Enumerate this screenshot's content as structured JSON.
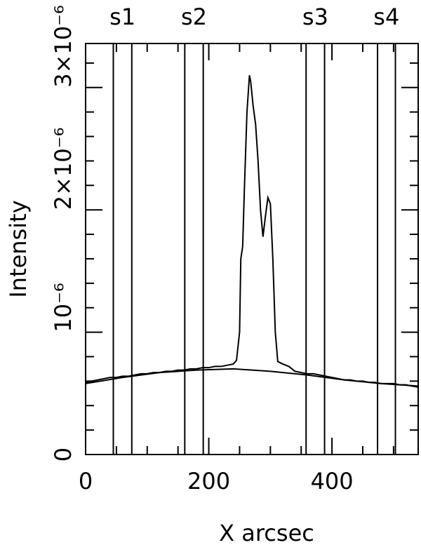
{
  "chart_data": {
    "type": "line",
    "xlabel": "X arcsec",
    "ylabel": "Intensity",
    "xlim": [
      0,
      540
    ],
    "ylim": [
      0,
      3.36e-06
    ],
    "xticks": [
      0,
      200,
      400
    ],
    "xticks_minor": [
      50,
      100,
      150,
      250,
      300,
      350,
      450,
      500
    ],
    "yticks": [
      0,
      {
        "value": 1e-06,
        "label": "10⁻⁶"
      },
      {
        "value": 2e-06,
        "label": "2×10⁻⁶"
      },
      {
        "value": 3e-06,
        "label": "3×10⁻⁶"
      }
    ],
    "yticks_minor": [
      2e-07,
      4e-07,
      6e-07,
      8e-07,
      1.2e-06,
      1.4e-06,
      1.6e-06,
      1.8e-06,
      2.2e-06,
      2.4e-06,
      2.6e-06,
      2.8e-06,
      3.2e-06
    ],
    "regions": [
      {
        "label": "s1",
        "x": [
          45,
          75
        ]
      },
      {
        "label": "s2",
        "x": [
          161,
          191
        ]
      },
      {
        "label": "s3",
        "x": [
          358,
          388
        ]
      },
      {
        "label": "s4",
        "x": [
          474,
          503
        ]
      }
    ],
    "series": [
      {
        "color": "#000000",
        "x": [
          0,
          10,
          20,
          30,
          40,
          50,
          60,
          70,
          80,
          90,
          100,
          110,
          120,
          130,
          140,
          150,
          160,
          170,
          180,
          190,
          200,
          210,
          220,
          230,
          240,
          245,
          250,
          252,
          255,
          258,
          262,
          266,
          268,
          272,
          276,
          280,
          284,
          288,
          292,
          296,
          300,
          304,
          308,
          312,
          320,
          330,
          340,
          350,
          360,
          370,
          380,
          390,
          400,
          410,
          420,
          430,
          440,
          450,
          460,
          470,
          480,
          490,
          500,
          510,
          520,
          530,
          540
        ],
        "values": [
          5.9e-07,
          6e-07,
          6.1e-07,
          6.2e-07,
          6.3e-07,
          6.3e-07,
          6.4e-07,
          6.4e-07,
          6.5e-07,
          6.6e-07,
          6.6e-07,
          6.7e-07,
          6.7e-07,
          6.8e-07,
          6.8e-07,
          6.9e-07,
          6.9e-07,
          7e-07,
          7e-07,
          7.1e-07,
          7.1e-07,
          7.2e-07,
          7.2e-07,
          7.3e-07,
          7.4e-07,
          7.7e-07,
          1e-06,
          1.6e-06,
          1.7e-06,
          2.2e-06,
          2.8e-06,
          3.1e-06,
          3.05e-06,
          2.85e-06,
          2.7e-06,
          2.4e-06,
          2e-06,
          1.78e-06,
          1.95e-06,
          2.1e-06,
          2.05e-06,
          1.6e-06,
          1e-06,
          7.6e-07,
          7.4e-07,
          7.2e-07,
          6.8e-07,
          6.7e-07,
          6.6e-07,
          6.6e-07,
          6.5e-07,
          6.4e-07,
          6.3e-07,
          6.2e-07,
          6.1e-07,
          6.1e-07,
          6e-07,
          6e-07,
          5.9e-07,
          5.9e-07,
          5.8e-07,
          5.8e-07,
          5.8e-07,
          5.7e-07,
          5.7e-07,
          5.6e-07,
          5.5e-07
        ]
      },
      {
        "color": "#000000",
        "x": [
          0,
          60,
          120,
          180,
          240,
          300,
          360,
          420,
          480,
          540
        ],
        "values": [
          5.8e-07,
          6.3e-07,
          6.7e-07,
          6.9e-07,
          7e-07,
          6.8e-07,
          6.5e-07,
          6.1e-07,
          5.8e-07,
          5.6e-07
        ]
      }
    ]
  }
}
